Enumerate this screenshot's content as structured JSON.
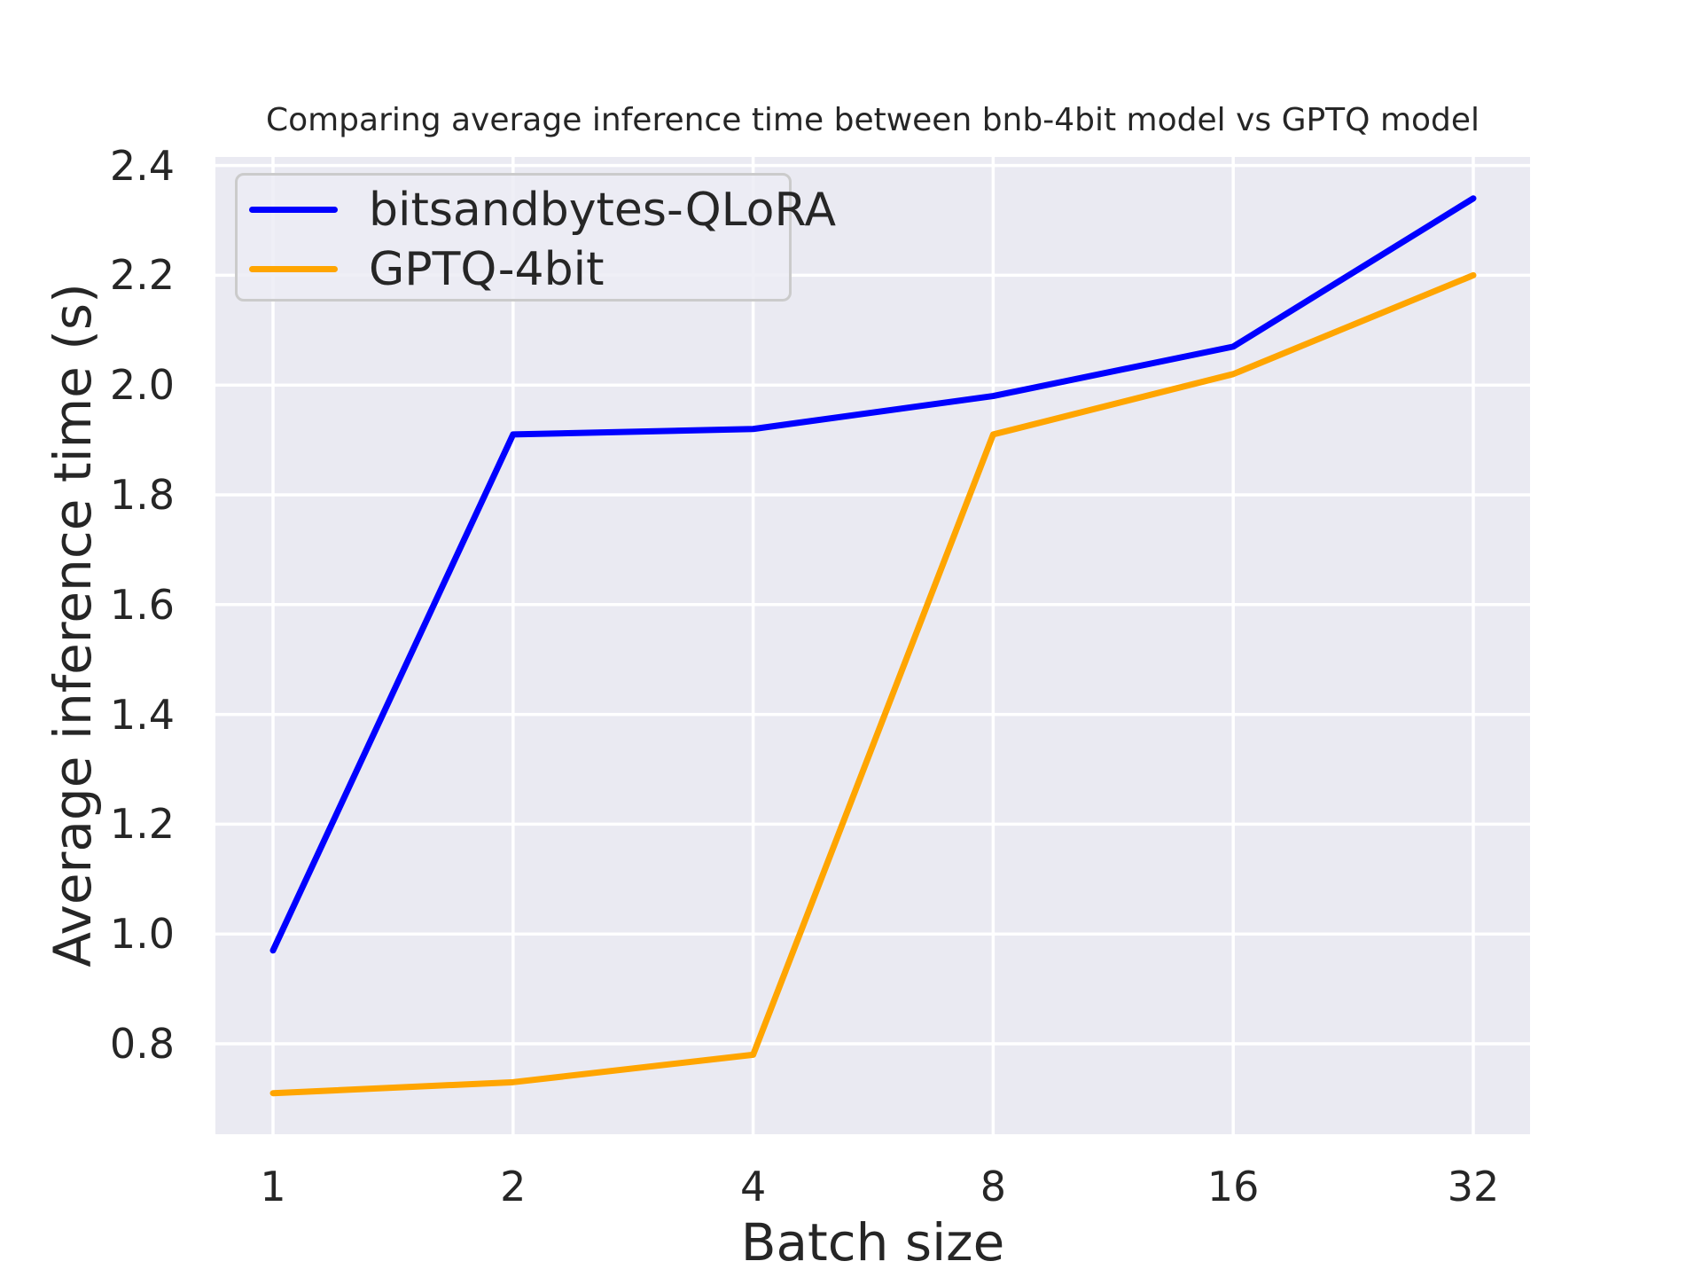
{
  "chart_data": {
    "type": "line",
    "title": "Comparing average inference time between bnb-4bit model vs GPTQ model",
    "xlabel": "Batch size",
    "ylabel": "Average inference time (s)",
    "x": [
      1,
      2,
      4,
      8,
      16,
      32
    ],
    "x_scale": "log2",
    "x_tick_labels": [
      "1",
      "2",
      "4",
      "8",
      "16",
      "32"
    ],
    "y_ticks": [
      0.8,
      1.0,
      1.2,
      1.4,
      1.6,
      1.8,
      2.0,
      2.2,
      2.4
    ],
    "ylim": [
      0.635,
      2.416
    ],
    "grid": true,
    "legend_position": "upper left",
    "series": [
      {
        "name": "bitsandbytes-QLoRA",
        "color": "#0000ff",
        "values": [
          0.97,
          1.91,
          1.92,
          1.98,
          2.07,
          2.34
        ]
      },
      {
        "name": "GPTQ-4bit",
        "color": "#ffa500",
        "values": [
          0.71,
          0.73,
          0.78,
          1.91,
          2.02,
          2.2
        ]
      }
    ],
    "colors": {
      "plot_background": "#eaeaf2",
      "gridline": "#ffffff",
      "text": "#262626",
      "legend_border": "#cbcbcb"
    }
  }
}
